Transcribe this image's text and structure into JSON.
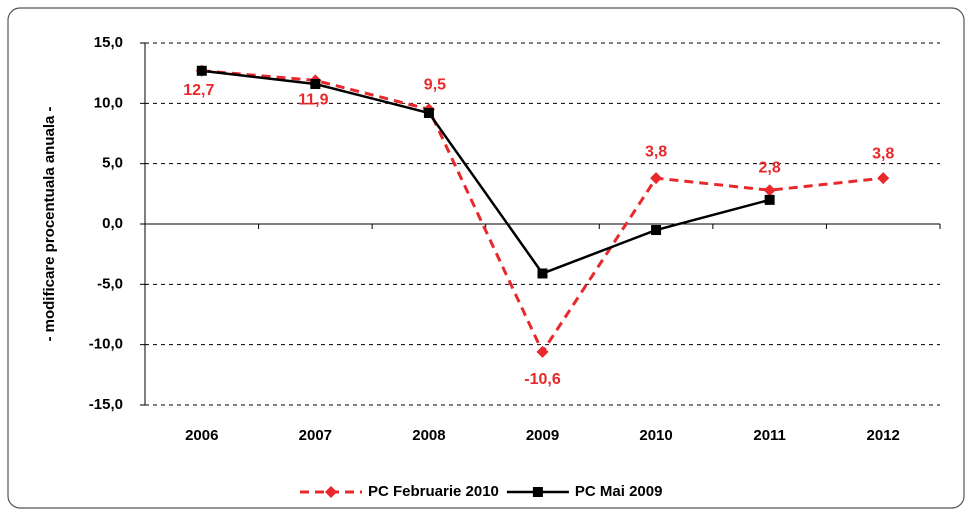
{
  "chart_data": {
    "type": "line",
    "y_label": "- modificare procentuala anuala -",
    "categories": [
      "2006",
      "2007",
      "2008",
      "2009",
      "2010",
      "2011",
      "2012"
    ],
    "series": [
      {
        "name": "PC Februarie 2010",
        "color": "#e8282b",
        "style": "dashed",
        "marker": "diamond",
        "values": [
          12.7,
          11.9,
          9.5,
          -10.6,
          3.8,
          2.8,
          3.8
        ],
        "value_labels": [
          "12,7",
          "11,9",
          "9,5",
          "-10,6",
          "3,8",
          "2,8",
          "3,8"
        ]
      },
      {
        "name": "PC Mai 2009",
        "color": "#000000",
        "style": "solid",
        "marker": "square",
        "values": [
          12.7,
          11.6,
          9.2,
          -4.1,
          -0.5,
          2.0,
          null
        ]
      }
    ],
    "ylim": [
      -15,
      15
    ],
    "yticks": [
      {
        "value": -15,
        "label": "-15,0"
      },
      {
        "value": -10,
        "label": "-10,0"
      },
      {
        "value": -5,
        "label": "-5,0"
      },
      {
        "value": 0,
        "label": "0,0"
      },
      {
        "value": 5,
        "label": "5,0"
      },
      {
        "value": 10,
        "label": "10,0"
      },
      {
        "value": 15,
        "label": "15,0"
      }
    ],
    "grid": true,
    "legend": "bottom"
  }
}
